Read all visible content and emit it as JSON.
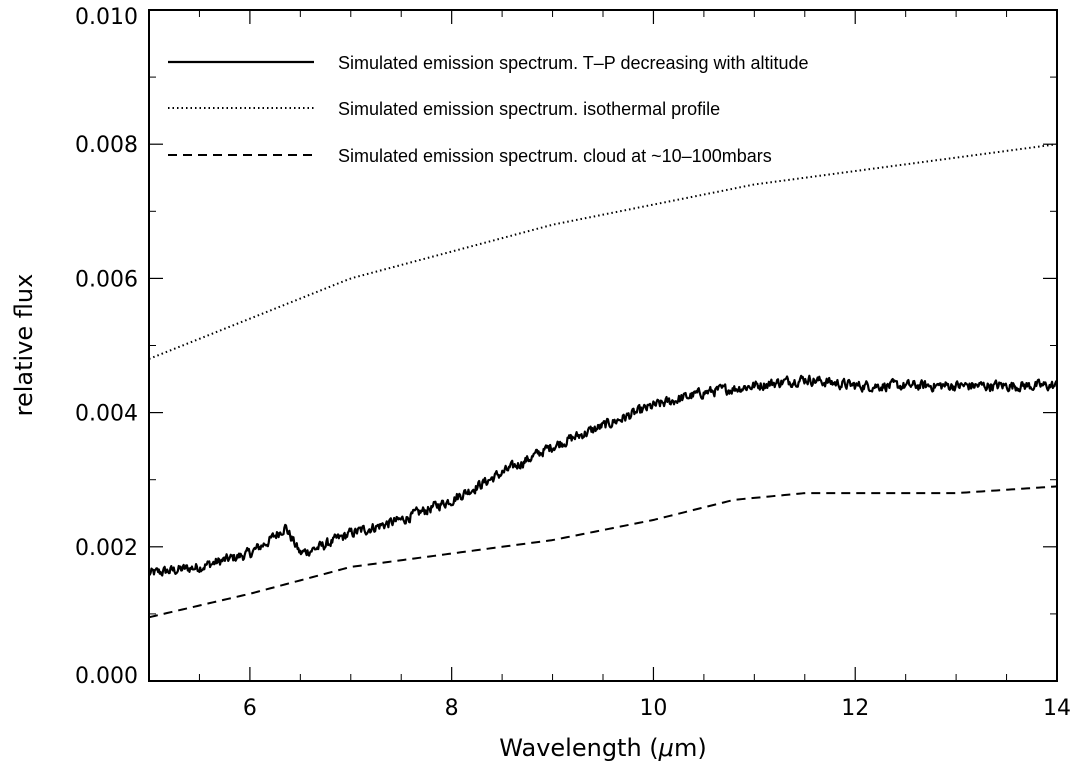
{
  "chart_data": {
    "type": "line",
    "title": "",
    "xlabel": "Wavelength (",
    "xlabel_symbol": "μ",
    "xlabel_unit": "m)",
    "ylabel": "relative flux",
    "xlim": [
      5,
      14
    ],
    "ylim": [
      0.0,
      0.01
    ],
    "xticks": [
      6,
      8,
      10,
      12,
      14
    ],
    "xtick_labels": [
      "6",
      "8",
      "10",
      "12",
      "14"
    ],
    "yticks": [
      0.0,
      0.002,
      0.004,
      0.006,
      0.008,
      0.01
    ],
    "ytick_labels": [
      "0.000",
      "0.002",
      "0.004",
      "0.006",
      "0.008",
      "0.010"
    ],
    "grid": false,
    "legend_position": "top-left",
    "series": [
      {
        "name": "Simulated emission spectrum. T–P decreasing with altitude",
        "style": "solid",
        "color": "#000000",
        "noise": 0.00012,
        "x": [
          5.0,
          5.5,
          6.0,
          6.2,
          6.35,
          6.5,
          6.7,
          7.0,
          7.5,
          8.0,
          8.5,
          9.0,
          9.5,
          10.0,
          10.5,
          11.0,
          11.5,
          12.0,
          12.5,
          13.0,
          13.5,
          14.0
        ],
        "y": [
          0.0016,
          0.0017,
          0.0019,
          0.0021,
          0.0023,
          0.0019,
          0.002,
          0.0022,
          0.0024,
          0.0027,
          0.0031,
          0.0035,
          0.0038,
          0.0041,
          0.0043,
          0.0044,
          0.0045,
          0.0044,
          0.0044,
          0.0044,
          0.0044,
          0.0044
        ]
      },
      {
        "name": "Simulated emission spectrum. isothermal profile",
        "style": "dotted",
        "color": "#000000",
        "x": [
          5.0,
          6.0,
          7.0,
          8.0,
          9.0,
          10.0,
          11.0,
          12.0,
          13.0,
          14.0
        ],
        "y": [
          0.0048,
          0.0054,
          0.006,
          0.0064,
          0.0068,
          0.0071,
          0.0074,
          0.0076,
          0.0078,
          0.008
        ]
      },
      {
        "name": "Simulated emission spectrum. cloud at ~10–100mbars",
        "style": "dashed",
        "color": "#000000",
        "x": [
          5.0,
          6.0,
          7.0,
          8.0,
          9.0,
          10.0,
          10.8,
          11.5,
          12.0,
          13.0,
          14.0
        ],
        "y": [
          0.00095,
          0.0013,
          0.0017,
          0.0019,
          0.0021,
          0.0024,
          0.0027,
          0.0028,
          0.0028,
          0.0028,
          0.0029
        ]
      }
    ]
  }
}
